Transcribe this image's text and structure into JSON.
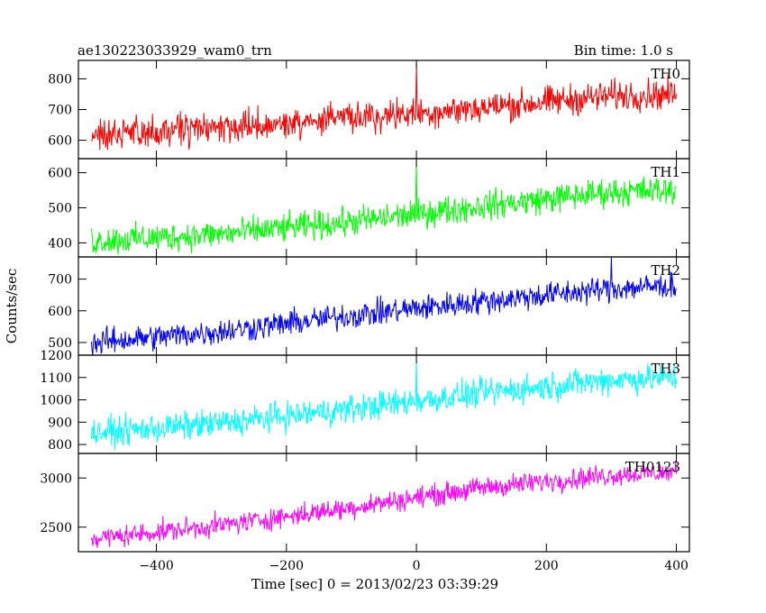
{
  "header": {
    "title": "ae130223033929_wam0_trn",
    "bin_time": "Bin time: 1.0 s"
  },
  "chart_data": {
    "type": "line",
    "title": "ae130223033929_wam0_trn",
    "subtitle": "Bin time: 1.0 s",
    "xlabel": "Time [sec] 0 = 2013/02/23 03:39:29",
    "ylabel": "Counts/sec",
    "xlim": [
      -520,
      420
    ],
    "x_ticks": [
      -400,
      -200,
      0,
      200,
      400
    ],
    "x_ticklabels": [
      "−400",
      "−200",
      "0",
      "200",
      "400"
    ],
    "x_data_range": [
      -500,
      400
    ],
    "grid": false,
    "panels": [
      {
        "name": "TH0",
        "color": "#ff0000",
        "ylim": [
          540,
          860
        ],
        "y_ticks": [
          600,
          700,
          800
        ],
        "trend_x": [
          -500,
          -300,
          -100,
          100,
          300,
          400
        ],
        "trend_y": [
          615,
          640,
          672,
          705,
          745,
          750
        ],
        "noise_amplitude": 55,
        "spikes": [
          [
            0,
            850
          ],
          [
            -350,
            570
          ]
        ]
      },
      {
        "name": "TH1",
        "color": "#00ff00",
        "ylim": [
          360,
          640
        ],
        "y_ticks": [
          400,
          500,
          600
        ],
        "trend_x": [
          -500,
          -300,
          -100,
          100,
          300,
          400
        ],
        "trend_y": [
          405,
          425,
          460,
          505,
          545,
          550
        ],
        "noise_amplitude": 45,
        "spikes": [
          [
            0,
            635
          ]
        ]
      },
      {
        "name": "TH2",
        "color": "#0000ff",
        "ylim": [
          460,
          770
        ],
        "y_ticks": [
          500,
          600,
          700
        ],
        "trend_x": [
          -500,
          -300,
          -100,
          100,
          300,
          400
        ],
        "trend_y": [
          500,
          535,
          585,
          630,
          670,
          680
        ],
        "noise_amplitude": 45,
        "spikes": [
          [
            -485,
            465
          ],
          [
            300,
            770
          ]
        ]
      },
      {
        "name": "TH3",
        "color": "#00ffff",
        "ylim": [
          760,
          1200
        ],
        "y_ticks": [
          800,
          900,
          1000,
          1100,
          1200
        ],
        "trend_x": [
          -500,
          -300,
          -100,
          100,
          300,
          400
        ],
        "trend_y": [
          850,
          895,
          960,
          1030,
          1090,
          1100
        ],
        "noise_amplitude": 70,
        "spikes": [
          [
            0,
            1190
          ]
        ]
      },
      {
        "name": "TH0123",
        "color": "#ff00ff",
        "ylim": [
          2250,
          3250
        ],
        "y_ticks": [
          2500,
          3000
        ],
        "trend_x": [
          -500,
          -300,
          -100,
          100,
          300,
          400
        ],
        "trend_y": [
          2380,
          2520,
          2700,
          2900,
          3030,
          3060
        ],
        "noise_amplitude": 120,
        "spikes": []
      }
    ]
  }
}
